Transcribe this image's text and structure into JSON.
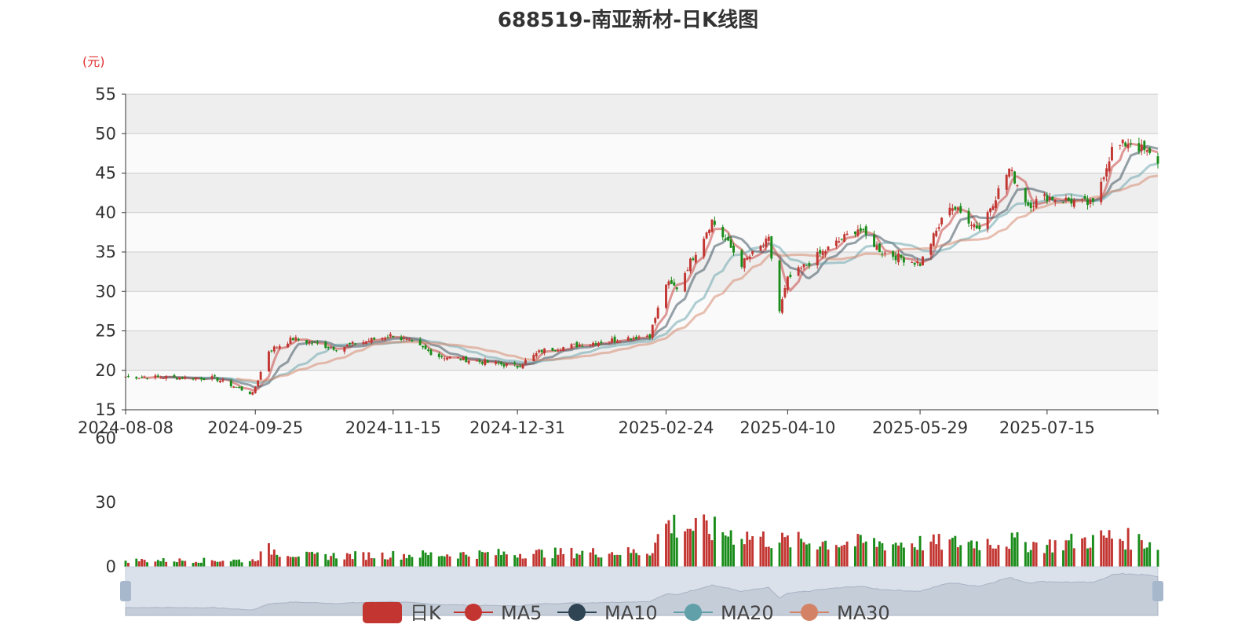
{
  "chart_data": [
    {
      "type": "candlestick",
      "title": "688519-南亚新材-日K线图",
      "y_unit": "(元)",
      "ylim": [
        15,
        55
      ],
      "y_ticks": [
        "15",
        "20",
        "25",
        "30",
        "35",
        "40",
        "45",
        "50",
        "55"
      ],
      "x_tick_labels": [
        "2024-08-08",
        "2024-09-25",
        "2024-11-15",
        "2024-12-31",
        "2025-02-24",
        "2025-04-10",
        "2025-05-29",
        "2025-07-15"
      ],
      "x_range": [
        "2024-08-08",
        "2025-08-25"
      ],
      "grid": true,
      "close_anchor_dates": [
        "2024-08-08",
        "2024-09-10",
        "2024-09-24",
        "2024-09-30",
        "2024-10-09",
        "2024-10-25",
        "2024-11-15",
        "2024-12-02",
        "2024-12-31",
        "2025-01-09",
        "2025-01-24",
        "2025-02-18",
        "2025-02-24",
        "2025-02-28",
        "2025-03-13",
        "2025-03-24",
        "2025-04-03",
        "2025-04-07",
        "2025-04-10",
        "2025-04-21",
        "2025-05-06",
        "2025-05-15",
        "2025-05-29",
        "2025-06-09",
        "2025-06-20",
        "2025-07-01",
        "2025-07-08",
        "2025-07-15",
        "2025-08-01",
        "2025-08-08",
        "2025-08-15",
        "2025-08-25"
      ],
      "close_anchor_values": [
        19.2,
        19.0,
        17.0,
        22.5,
        24.0,
        22.8,
        24.5,
        21.8,
        20.5,
        22.5,
        23.3,
        24.5,
        31.0,
        30.5,
        39.0,
        33.5,
        36.5,
        27.5,
        31.5,
        34.5,
        38.0,
        35.0,
        33.5,
        41.0,
        38.0,
        45.5,
        41.0,
        42.0,
        41.0,
        48.0,
        49.0,
        46.5
      ],
      "candle_colors": {
        "up": "#c23531",
        "down": "#1a8c1a"
      },
      "series": [
        {
          "name": "日K",
          "color": "#c23531"
        },
        {
          "name": "MA5",
          "color": "#c23531"
        },
        {
          "name": "MA10",
          "color": "#2f4554"
        },
        {
          "name": "MA20",
          "color": "#61a0a8"
        },
        {
          "name": "MA30",
          "color": "#d48265"
        }
      ],
      "legend_position": "bottom"
    },
    {
      "type": "bar",
      "title": "",
      "ylim": [
        0,
        60
      ],
      "y_ticks": [
        "0",
        "30",
        "60"
      ],
      "volume_anchor_dates": [
        "2024-08-08",
        "2024-09-24",
        "2024-09-30",
        "2024-10-15",
        "2025-02-18",
        "2025-02-24",
        "2025-03-13",
        "2025-04-07",
        "2025-05-06",
        "2025-06-09",
        "2025-07-01",
        "2025-07-15",
        "2025-08-08",
        "2025-08-25"
      ],
      "volume_anchor_values": [
        3,
        3,
        8,
        5,
        7,
        20,
        17,
        12,
        11,
        11,
        12,
        10,
        14,
        11
      ]
    }
  ],
  "legend": [
    {
      "label": "日K",
      "color": "#c23531"
    },
    {
      "label": "MA5",
      "color": "#c23531"
    },
    {
      "label": "MA10",
      "color": "#2f4554"
    },
    {
      "label": "MA20",
      "color": "#61a0a8"
    },
    {
      "label": "MA30",
      "color": "#d48265"
    }
  ],
  "zoom": {
    "start_percent": 0,
    "end_percent": 100
  }
}
